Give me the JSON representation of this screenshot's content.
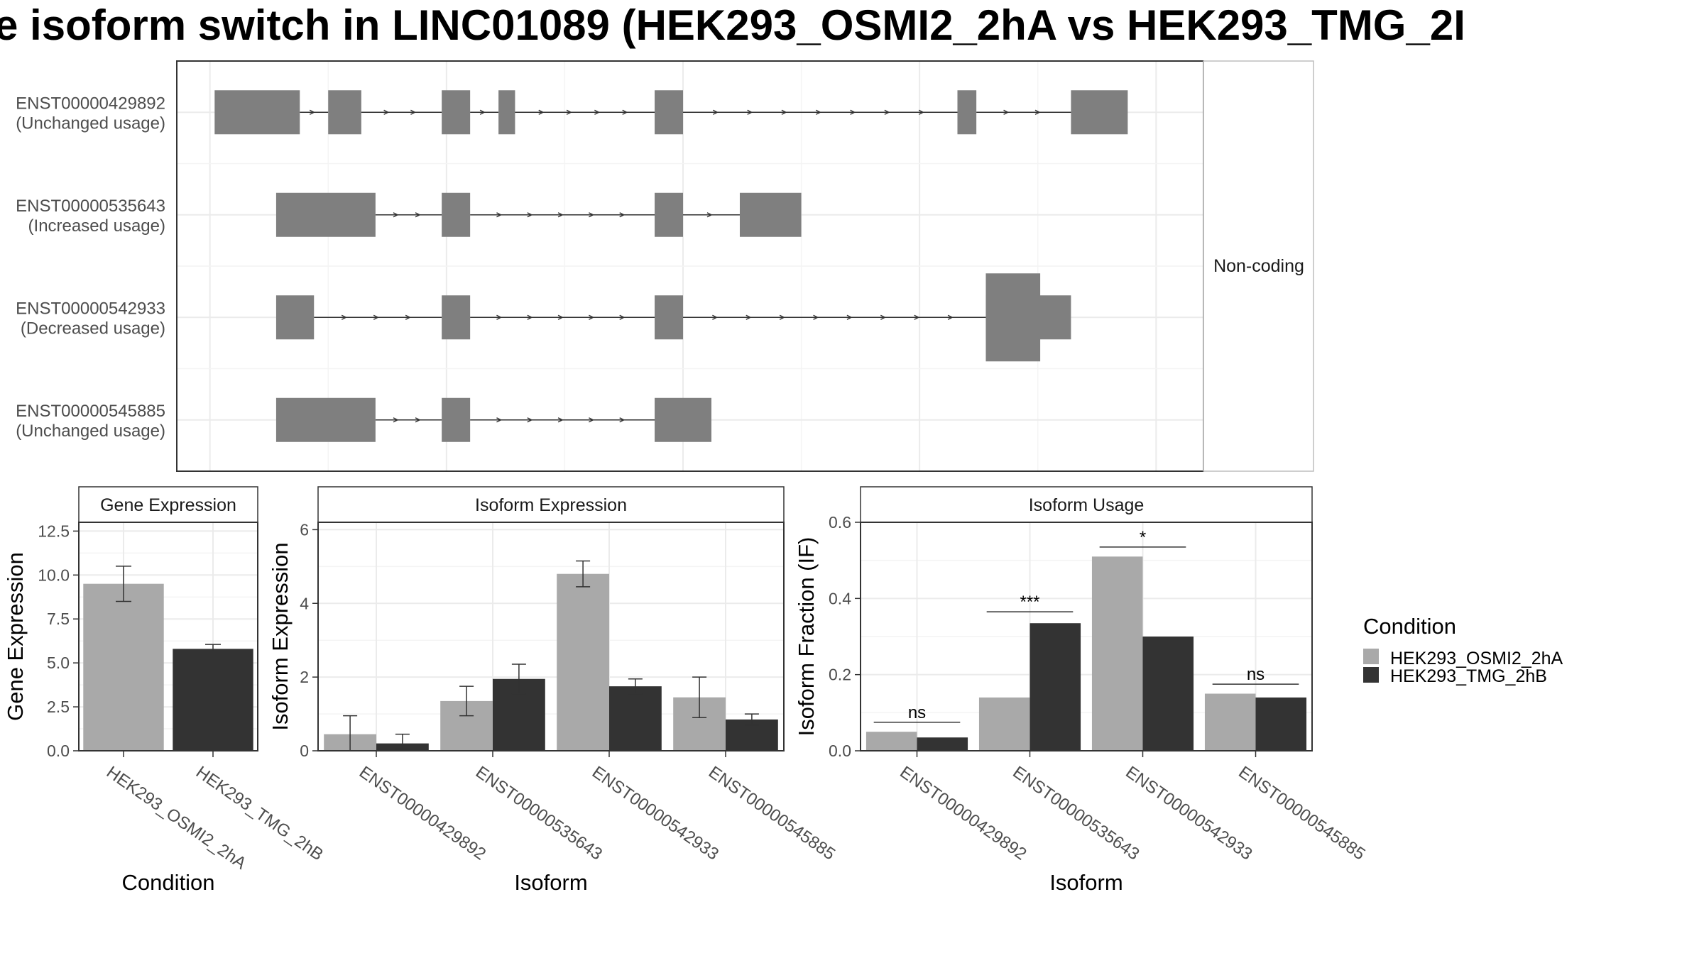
{
  "title": "e isoform switch in LINC01089 (HEK293_OSMI2_2hA vs HEK293_TMG_2I",
  "chart_data": [
    {
      "type": "gene-structure",
      "facet_label": "Non-coding",
      "transcripts": [
        {
          "id": "ENST00000429892",
          "usage": "(Unchanged usage)",
          "exons": [
            [
              1,
              19
            ],
            [
              25,
              32
            ],
            [
              49,
              55
            ],
            [
              61,
              64.5
            ],
            [
              94,
              100
            ],
            [
              158,
              162
            ],
            [
              182,
              194
            ]
          ]
        },
        {
          "id": "ENST00000535643",
          "usage": "(Increased usage)",
          "exons": [
            [
              14,
              35
            ],
            [
              49,
              55
            ],
            [
              94,
              100
            ],
            [
              112,
              125
            ]
          ]
        },
        {
          "id": "ENST00000542933",
          "usage": "(Decreased usage)",
          "exons": [
            [
              14,
              22
            ],
            [
              49,
              55
            ],
            [
              94,
              100
            ],
            [
              164,
              182
            ]
          ],
          "tall_region": [
            164,
            175.5
          ]
        },
        {
          "id": "ENST00000545885",
          "usage": "(Unchanged usage)",
          "exons": [
            [
              14,
              35
            ],
            [
              49,
              55
            ],
            [
              94,
              106
            ]
          ]
        }
      ]
    },
    {
      "type": "bar",
      "title": "Gene Expression",
      "xlabel": "Condition",
      "ylabel": "Gene Expression",
      "ylim": [
        0,
        13
      ],
      "yticks": [
        "0.0",
        "2.5",
        "5.0",
        "7.5",
        "10.0",
        "12.5"
      ],
      "categories": [
        "HEK293_OSMI2_2hA",
        "HEK293_TMG_2hB"
      ],
      "values": [
        9.5,
        5.8
      ],
      "errors": [
        [
          8.5,
          10.5
        ],
        [
          5.6,
          6.05
        ]
      ]
    },
    {
      "type": "bar",
      "title": "Isoform Expression",
      "xlabel": "Isoform",
      "ylabel": "Isoform Expression",
      "ylim": [
        0,
        6.2
      ],
      "yticks": [
        "0",
        "2",
        "4",
        "6"
      ],
      "categories": [
        "ENST00000429892",
        "ENST00000535643",
        "ENST00000542933",
        "ENST00000545885"
      ],
      "series": [
        {
          "name": "HEK293_OSMI2_2hA",
          "values": [
            0.45,
            1.35,
            4.8,
            1.45
          ],
          "errors": [
            [
              0,
              0.95
            ],
            [
              0.95,
              1.75
            ],
            [
              4.45,
              5.15
            ],
            [
              0.9,
              2.0
            ]
          ]
        },
        {
          "name": "HEK293_TMG_2hB",
          "values": [
            0.2,
            1.95,
            1.75,
            0.85
          ],
          "errors": [
            [
              0.05,
              0.45
            ],
            [
              1.55,
              2.35
            ],
            [
              1.55,
              1.95
            ],
            [
              0.7,
              1.0
            ]
          ]
        }
      ]
    },
    {
      "type": "bar",
      "title": "Isoform Usage",
      "xlabel": "Isoform",
      "ylabel": "Isoform Fraction (IF)",
      "ylim": [
        0,
        0.6
      ],
      "yticks": [
        "0.0",
        "0.2",
        "0.4",
        "0.6"
      ],
      "categories": [
        "ENST00000429892",
        "ENST00000535643",
        "ENST00000542933",
        "ENST00000545885"
      ],
      "series": [
        {
          "name": "HEK293_OSMI2_2hA",
          "values": [
            0.05,
            0.14,
            0.51,
            0.15
          ]
        },
        {
          "name": "HEK293_TMG_2hB",
          "values": [
            0.035,
            0.335,
            0.3,
            0.14
          ]
        }
      ],
      "significance": [
        {
          "label": "ns",
          "y": 0.075
        },
        {
          "label": "***",
          "y": 0.365
        },
        {
          "label": "*",
          "y": 0.535
        },
        {
          "label": "ns",
          "y": 0.175
        }
      ]
    }
  ],
  "legend": {
    "title": "Condition",
    "entries": [
      "HEK293_OSMI2_2hA",
      "HEK293_TMG_2hB"
    ],
    "colors": [
      "#a9a9a9",
      "#333333"
    ]
  }
}
